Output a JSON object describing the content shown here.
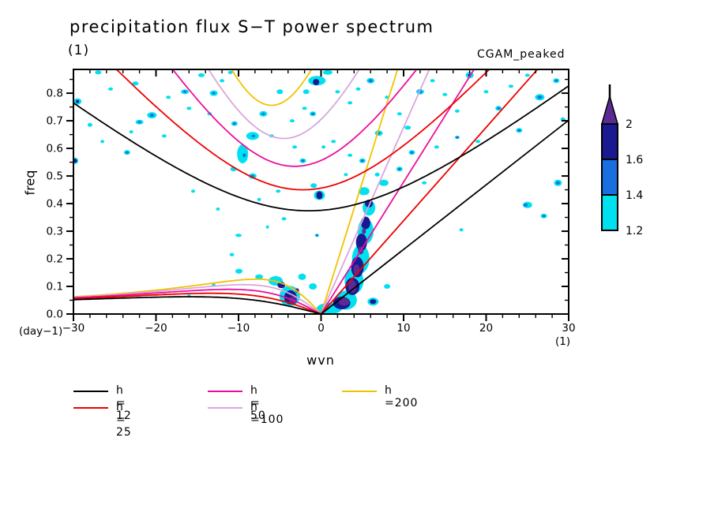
{
  "chart_data": {
    "type": "heatmap",
    "title": "precipitation flux S−T power spectrum",
    "subtitle": "(1)",
    "dataset_label": "CGAM_peaked",
    "xlabel": "wvn",
    "ylabel": "freq",
    "ylabel_unit": "(day−1)",
    "xlabel_unit": "(1)",
    "xlim": [
      -30,
      30
    ],
    "ylim": [
      0,
      0.886
    ],
    "x_major_ticks": [
      -30,
      -20,
      -10,
      0,
      10,
      20,
      30
    ],
    "x_tick_labels": [
      "−30",
      "−20",
      "−10",
      "0",
      "10",
      "20",
      "30"
    ],
    "x_minor_step": 2,
    "y_major_ticks": [
      0,
      0.1,
      0.2,
      0.3,
      0.4,
      0.5,
      0.6,
      0.7,
      0.8
    ],
    "y_tick_labels": [
      "0.0",
      "0.1",
      "0.2",
      "0.3",
      "0.4",
      "0.5",
      "0.6",
      "0.7",
      "0.8"
    ],
    "y_minor_step": 0.05,
    "grid": false,
    "colorbar": {
      "levels": [
        "1.2",
        "1.4",
        "1.6",
        "2"
      ],
      "segment_colors": [
        "#00E1F0",
        "#1A6FE0",
        "#191992"
      ],
      "over_color": "#5B2B94"
    },
    "dispersion_curves": {
      "description": "equatorial wave dispersion curves (Kelvin, n=1 inertio-gravity, n=1 equatorial Rossby) for equivalent depths h (m)",
      "equivalent_depths": [
        12,
        25,
        50,
        100,
        200
      ],
      "colors": [
        "#000000",
        "#EE0000",
        "#ED0E9C",
        "#D9A6DC",
        "#F2C200"
      ],
      "kelvin_slope_cpd_per_wvn": [
        0.0234,
        0.0338,
        0.0478,
        0.0676,
        0.0956
      ],
      "ig_min_freq_cpd": [
        0.374,
        0.45,
        0.535,
        0.636,
        0.756
      ],
      "ig_westward_shift_wvn": [
        1.5,
        2.2,
        3.2,
        4.5,
        6.0
      ],
      "rossby_coeff": 2.0,
      "rossby_D": [
        255.8,
        177.2,
        125.3,
        88.6,
        62.7
      ]
    },
    "legend": {
      "items": [
        {
          "label": "h = 12",
          "color": "#000000"
        },
        {
          "label": "h = 25",
          "color": "#EE0000"
        },
        {
          "label": "h = 50",
          "color": "#ED0E9C"
        },
        {
          "label": "h =100",
          "color": "#D9A6DC"
        },
        {
          "label": "h =200",
          "color": "#F2C200"
        }
      ]
    },
    "spectral_blobs": {
      "level_colors": {
        "1": "#00E1F0",
        "2": "#1A6FE0",
        "3": "#191992",
        "4": "#5B2B94"
      },
      "level_values": {
        "1": "1.2-1.4",
        "2": "1.4-1.6",
        "3": "1.6-2",
        "4": ">2"
      },
      "points": [
        [
          -29.5,
          0.77,
          5,
          4,
          1
        ],
        [
          -27,
          0.875,
          4,
          2.5,
          1
        ],
        [
          -25.5,
          0.815,
          3,
          2,
          1
        ],
        [
          -22.5,
          0.835,
          4,
          2.5,
          1
        ],
        [
          -22,
          0.695,
          5,
          3,
          1
        ],
        [
          -20.5,
          0.72,
          6,
          4,
          1
        ],
        [
          -18.5,
          0.785,
          3,
          2,
          1
        ],
        [
          -16.5,
          0.805,
          5,
          3,
          1
        ],
        [
          -14.5,
          0.865,
          4,
          2.5,
          1
        ],
        [
          -13,
          0.8,
          5,
          3.5,
          1
        ],
        [
          -12,
          0.845,
          3,
          2,
          1
        ],
        [
          -11,
          0.875,
          3,
          2,
          1
        ],
        [
          -16,
          0.745,
          3,
          2,
          1
        ],
        [
          -19,
          0.645,
          3,
          2,
          1
        ],
        [
          -23,
          0.66,
          2.5,
          2,
          1
        ],
        [
          -26.5,
          0.625,
          2.5,
          2,
          1
        ],
        [
          -28,
          0.685,
          3,
          2.5,
          1
        ],
        [
          -23.5,
          0.585,
          4,
          3,
          1
        ],
        [
          -29.8,
          0.555,
          4,
          4,
          1
        ],
        [
          -10.5,
          0.69,
          4,
          3,
          1
        ],
        [
          -13.5,
          0.725,
          3,
          2,
          1
        ],
        [
          -7,
          0.725,
          5,
          3.5,
          1
        ],
        [
          -6,
          0.645,
          3,
          2,
          1
        ],
        [
          -3.5,
          0.7,
          3,
          2,
          1
        ],
        [
          -2,
          0.745,
          3,
          2,
          1
        ],
        [
          -1,
          0.725,
          4,
          3,
          1
        ],
        [
          -0.5,
          0.845,
          11,
          6,
          1
        ],
        [
          0.8,
          0.875,
          6,
          3,
          1
        ],
        [
          -1.8,
          0.805,
          4,
          3,
          1
        ],
        [
          -5,
          0.805,
          4,
          3,
          1
        ],
        [
          2,
          0.805,
          3,
          2,
          1
        ],
        [
          3.5,
          0.765,
          3,
          2,
          1
        ],
        [
          4.5,
          0.815,
          3,
          2,
          1
        ],
        [
          6,
          0.845,
          5,
          3.5,
          1
        ],
        [
          8,
          0.785,
          3,
          2,
          1
        ],
        [
          9.5,
          0.725,
          3,
          2,
          1
        ],
        [
          7,
          0.655,
          5,
          3.5,
          1
        ],
        [
          10.5,
          0.675,
          4,
          2.5,
          1
        ],
        [
          12,
          0.805,
          5,
          3.5,
          1
        ],
        [
          13.5,
          0.845,
          3,
          2,
          1
        ],
        [
          15,
          0.795,
          3,
          2,
          1
        ],
        [
          16.5,
          0.735,
          3,
          2,
          1
        ],
        [
          18,
          0.865,
          5,
          4,
          1
        ],
        [
          20,
          0.805,
          3,
          2,
          1
        ],
        [
          21.5,
          0.745,
          4,
          3,
          1
        ],
        [
          23,
          0.825,
          3,
          2,
          1
        ],
        [
          25,
          0.865,
          3,
          2,
          1
        ],
        [
          26.5,
          0.785,
          6,
          4,
          1
        ],
        [
          28.5,
          0.845,
          4,
          3,
          1
        ],
        [
          29.3,
          0.705,
          3,
          2.5,
          1
        ],
        [
          24,
          0.665,
          4,
          3,
          1
        ],
        [
          19,
          0.625,
          3,
          2,
          1
        ],
        [
          16.5,
          0.64,
          3,
          2,
          1
        ],
        [
          14,
          0.605,
          3,
          2,
          1
        ],
        [
          11,
          0.585,
          4,
          3,
          1
        ],
        [
          9.5,
          0.525,
          4,
          3,
          1
        ],
        [
          12.5,
          0.475,
          3,
          2,
          1
        ],
        [
          28.7,
          0.475,
          5,
          4,
          1
        ],
        [
          25,
          0.395,
          6,
          4,
          1
        ],
        [
          27,
          0.355,
          4,
          3,
          1
        ],
        [
          17,
          0.305,
          2.5,
          2,
          1
        ],
        [
          -0.5,
          0.285,
          2.5,
          2,
          1
        ],
        [
          -10,
          0.285,
          4,
          2,
          1
        ],
        [
          -10.8,
          0.215,
          3,
          2,
          1
        ],
        [
          3.5,
          0.575,
          3,
          2,
          1
        ],
        [
          1.5,
          0.625,
          3,
          2,
          1
        ],
        [
          0.3,
          0.605,
          2.5,
          2,
          1
        ],
        [
          -2.2,
          0.555,
          4,
          3,
          1
        ],
        [
          -3.2,
          0.605,
          3,
          2,
          1
        ],
        [
          5,
          0.555,
          4,
          3,
          1
        ],
        [
          6.8,
          0.505,
          3,
          2.5,
          1
        ],
        [
          3,
          0.505,
          2.5,
          2,
          1
        ],
        [
          -8.3,
          0.5,
          5,
          3.5,
          1
        ],
        [
          -0.2,
          0.43,
          7,
          6,
          1
        ],
        [
          -0.9,
          0.465,
          4,
          3,
          1
        ],
        [
          -9.5,
          0.58,
          7,
          12,
          1
        ],
        [
          -8.3,
          0.645,
          8,
          5,
          1
        ],
        [
          -10.6,
          0.525,
          4,
          3,
          1
        ],
        [
          -5.2,
          0.445,
          3,
          2,
          1
        ],
        [
          -7.5,
          0.415,
          2.5,
          2,
          1
        ],
        [
          -12.5,
          0.38,
          2.5,
          2,
          1
        ],
        [
          -15.5,
          0.445,
          2.5,
          2,
          1
        ],
        [
          -4.5,
          0.345,
          3,
          2,
          1
        ],
        [
          -6.5,
          0.315,
          2,
          2,
          1
        ],
        [
          -10,
          0.155,
          4,
          3,
          1
        ],
        [
          -13,
          0.105,
          2.5,
          2,
          1
        ],
        [
          -16,
          0.065,
          2,
          2,
          1
        ],
        [
          1.0,
          0.02,
          16,
          7,
          1
        ],
        [
          3.0,
          0.05,
          14,
          12,
          1
        ],
        [
          4.0,
          0.12,
          12,
          16,
          1
        ],
        [
          4.8,
          0.2,
          11,
          18,
          1
        ],
        [
          5.4,
          0.3,
          10,
          16,
          1
        ],
        [
          5.8,
          0.385,
          8,
          10,
          1
        ],
        [
          5.2,
          0.445,
          7,
          5,
          1
        ],
        [
          7.6,
          0.475,
          6,
          4,
          1
        ],
        [
          6.3,
          0.045,
          7,
          5,
          1
        ],
        [
          8,
          0.1,
          4,
          3,
          1
        ],
        [
          -3.8,
          0.065,
          13,
          13,
          1
        ],
        [
          -5.5,
          0.12,
          9,
          6,
          1
        ],
        [
          -2.3,
          0.135,
          5,
          4,
          1
        ],
        [
          -7.5,
          0.135,
          5,
          3,
          1
        ],
        [
          -9.9,
          0.155,
          4,
          3,
          1
        ],
        [
          -1.0,
          0.1,
          5,
          4,
          1
        ],
        [
          -20.5,
          0.72,
          2.5,
          2,
          2
        ],
        [
          -22,
          0.695,
          2,
          1.5,
          2
        ],
        [
          -16.5,
          0.805,
          2,
          1.5,
          2
        ],
        [
          -13,
          0.8,
          2,
          1.5,
          2
        ],
        [
          -23.5,
          0.585,
          2,
          1.5,
          2
        ],
        [
          -10.5,
          0.69,
          2,
          1.5,
          2
        ],
        [
          -7,
          0.725,
          2,
          1.5,
          2
        ],
        [
          -1,
          0.725,
          2,
          1.5,
          2
        ],
        [
          6,
          0.845,
          2.5,
          2,
          2
        ],
        [
          12,
          0.805,
          2.5,
          2,
          2
        ],
        [
          21.5,
          0.745,
          2,
          1.5,
          2
        ],
        [
          28.5,
          0.845,
          2,
          1.5,
          2
        ],
        [
          24,
          0.665,
          2,
          1.5,
          2
        ],
        [
          16.5,
          0.64,
          2,
          1.5,
          2
        ],
        [
          11,
          0.585,
          2,
          1.5,
          2
        ],
        [
          9.5,
          0.525,
          2,
          1.5,
          2
        ],
        [
          28.7,
          0.475,
          2.5,
          2,
          2
        ],
        [
          24.8,
          0.395,
          2.5,
          2,
          2
        ],
        [
          27,
          0.355,
          2,
          1.5,
          2
        ],
        [
          7,
          0.655,
          2,
          1.5,
          2
        ],
        [
          -9.3,
          0.575,
          2,
          2.5,
          2
        ],
        [
          -8.2,
          0.645,
          2.5,
          1.5,
          2
        ],
        [
          -8.3,
          0.5,
          2,
          1.5,
          2
        ],
        [
          -2.2,
          0.555,
          2,
          1.5,
          2
        ],
        [
          5,
          0.555,
          2,
          1.5,
          2
        ],
        [
          26.5,
          0.785,
          3,
          2,
          2
        ],
        [
          -0.5,
          0.285,
          1.5,
          1.5,
          2
        ],
        [
          2.5,
          0.04,
          11,
          8,
          3
        ],
        [
          3.8,
          0.1,
          9,
          11,
          3
        ],
        [
          4.4,
          0.17,
          8,
          13,
          3
        ],
        [
          4.9,
          0.26,
          7,
          11,
          3
        ],
        [
          5.4,
          0.33,
          6,
          8,
          3
        ],
        [
          5.8,
          0.4,
          5,
          5,
          3
        ],
        [
          6.3,
          0.045,
          4,
          3,
          3
        ],
        [
          -3.7,
          0.06,
          8,
          9,
          3
        ],
        [
          -4.8,
          0.105,
          5,
          4,
          3
        ],
        [
          -0.2,
          0.43,
          4,
          5,
          3
        ],
        [
          -0.6,
          0.84,
          4,
          4,
          3
        ],
        [
          -29.5,
          0.77,
          2,
          2,
          3
        ],
        [
          -29.8,
          0.555,
          2.5,
          2.5,
          3
        ],
        [
          18,
          0.865,
          2,
          1.7,
          3
        ],
        [
          2.8,
          0.045,
          7,
          5,
          4
        ],
        [
          3.8,
          0.1,
          5,
          8,
          4
        ],
        [
          4.3,
          0.16,
          4,
          7,
          4
        ],
        [
          4.8,
          0.23,
          3.5,
          5,
          4
        ],
        [
          5.2,
          0.3,
          2.5,
          3.5,
          4
        ],
        [
          -3.4,
          0.05,
          5,
          5,
          4
        ],
        [
          -2.9,
          0.085,
          2.5,
          3,
          4
        ]
      ]
    }
  }
}
